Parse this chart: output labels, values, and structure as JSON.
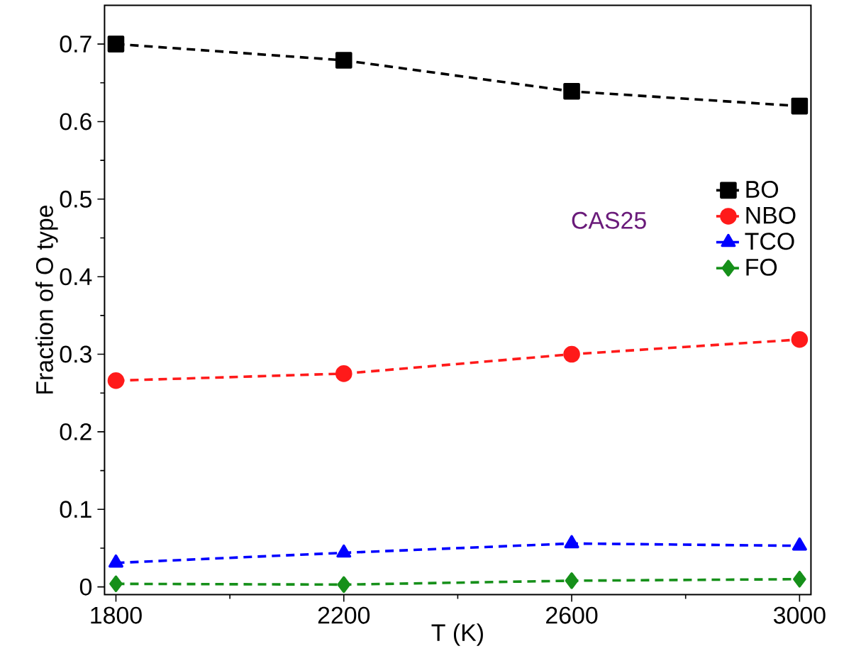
{
  "chart_data": {
    "type": "line",
    "xlabel": "T (K)",
    "ylabel": "Fraction of O type",
    "x": [
      1800,
      2200,
      2600,
      3000
    ],
    "series": [
      {
        "name": "BO",
        "color": "#000000",
        "marker": "square",
        "values": [
          0.7,
          0.679,
          0.639,
          0.62
        ]
      },
      {
        "name": "NBO",
        "color": "#ff1a1a",
        "marker": "circle",
        "values": [
          0.266,
          0.275,
          0.3,
          0.319
        ]
      },
      {
        "name": "TCO",
        "color": "#0000ff",
        "marker": "triangle",
        "values": [
          0.031,
          0.044,
          0.056,
          0.053
        ]
      },
      {
        "name": "FO",
        "color": "#16901a",
        "marker": "diamond",
        "values": [
          0.004,
          0.003,
          0.008,
          0.01
        ]
      }
    ],
    "xlim": [
      1780,
      3020
    ],
    "xticks": [
      1800,
      2200,
      2600,
      3000
    ],
    "ylim": [
      -0.01,
      0.75
    ],
    "yticks": [
      0,
      0.1,
      0.2,
      0.3,
      0.4,
      0.5,
      0.6,
      0.7
    ],
    "line_style": "dashed",
    "grid": false,
    "legend": "right",
    "annotations": [
      "CAS25"
    ]
  }
}
